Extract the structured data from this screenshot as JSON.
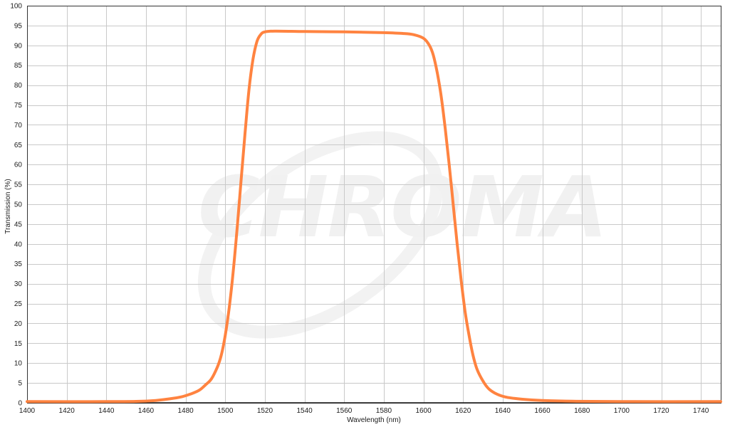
{
  "watermark": {
    "logo_text": "CHROMA"
  },
  "chart_data": {
    "type": "line",
    "title": "",
    "xlabel": "Wavelength (nm)",
    "ylabel": "Transmission (%)",
    "xlim": [
      1400,
      1750
    ],
    "ylim": [
      0,
      100
    ],
    "x_ticks": [
      1400,
      1420,
      1440,
      1460,
      1480,
      1500,
      1520,
      1540,
      1560,
      1580,
      1600,
      1620,
      1640,
      1660,
      1680,
      1700,
      1720,
      1740
    ],
    "y_ticks": [
      0,
      5,
      10,
      15,
      20,
      25,
      30,
      35,
      40,
      45,
      50,
      55,
      60,
      65,
      70,
      75,
      80,
      85,
      90,
      95,
      100
    ],
    "grid": true,
    "legend": "none",
    "series": [
      {
        "color": "#FF8340",
        "points": [
          [
            1400,
            0.3
          ],
          [
            1440,
            0.3
          ],
          [
            1455,
            0.35
          ],
          [
            1465,
            0.6
          ],
          [
            1472,
            1.0
          ],
          [
            1478,
            1.5
          ],
          [
            1483,
            2.3
          ],
          [
            1487,
            3.2
          ],
          [
            1490,
            4.5
          ],
          [
            1493,
            6.0
          ],
          [
            1496,
            9.0
          ],
          [
            1498,
            12.0
          ],
          [
            1500,
            17.0
          ],
          [
            1502,
            24.0
          ],
          [
            1504,
            33.0
          ],
          [
            1506,
            44.0
          ],
          [
            1508,
            56.0
          ],
          [
            1510,
            68.0
          ],
          [
            1512,
            79.0
          ],
          [
            1514,
            86.5
          ],
          [
            1516,
            91.0
          ],
          [
            1518,
            92.8
          ],
          [
            1520,
            93.4
          ],
          [
            1525,
            93.6
          ],
          [
            1540,
            93.5
          ],
          [
            1560,
            93.4
          ],
          [
            1580,
            93.2
          ],
          [
            1590,
            93.0
          ],
          [
            1595,
            92.7
          ],
          [
            1600,
            91.8
          ],
          [
            1603,
            90.0
          ],
          [
            1605,
            87.5
          ],
          [
            1607,
            83.0
          ],
          [
            1609,
            77.0
          ],
          [
            1611,
            69.0
          ],
          [
            1613,
            60.0
          ],
          [
            1615,
            50.0
          ],
          [
            1617,
            40.0
          ],
          [
            1619,
            31.0
          ],
          [
            1621,
            23.0
          ],
          [
            1623,
            17.0
          ],
          [
            1625,
            12.0
          ],
          [
            1627,
            8.5
          ],
          [
            1630,
            5.5
          ],
          [
            1633,
            3.5
          ],
          [
            1637,
            2.2
          ],
          [
            1642,
            1.4
          ],
          [
            1650,
            0.9
          ],
          [
            1660,
            0.6
          ],
          [
            1675,
            0.4
          ],
          [
            1700,
            0.3
          ],
          [
            1750,
            0.3
          ]
        ]
      }
    ]
  }
}
